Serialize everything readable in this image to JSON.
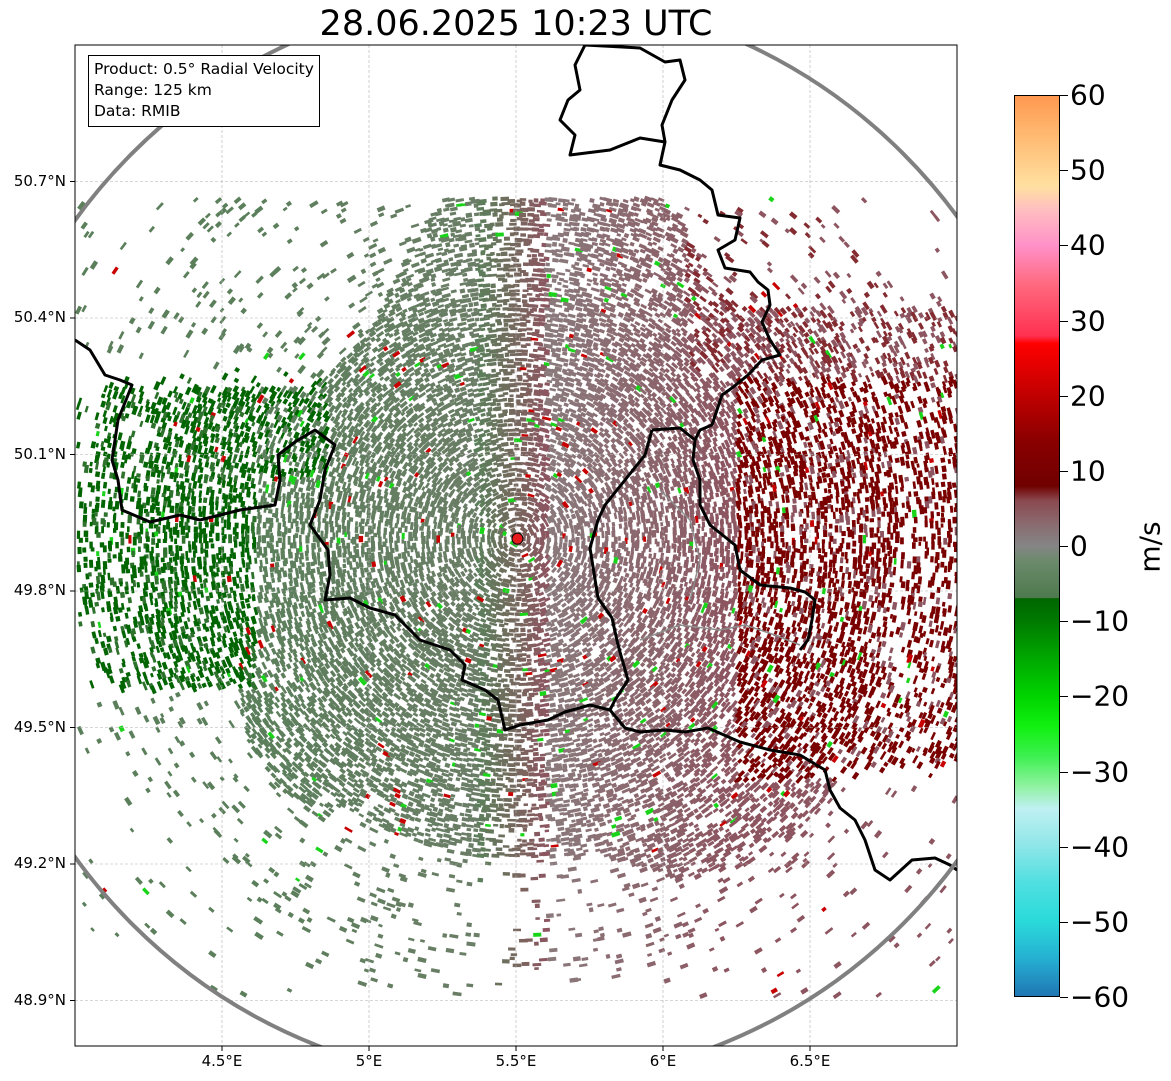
{
  "title": "28.06.2025 10:23 UTC",
  "info_box": {
    "product": "Product: 0.5° Radial Velocity",
    "range": "Range: 125 km",
    "data": "Data: RMIB"
  },
  "map": {
    "lon_range": [
      4.0,
      7.0
    ],
    "lat_range": [
      48.8,
      51.0
    ],
    "lat_ticks": [
      "50.7°N",
      "50.4°N",
      "50.1°N",
      "49.8°N",
      "49.5°N",
      "49.2°N",
      "48.9°N"
    ],
    "lat_tick_values": [
      50.7,
      50.4,
      50.1,
      49.8,
      49.5,
      49.2,
      48.9
    ],
    "lon_ticks": [
      "4.5°E",
      "5°E",
      "5.5°E",
      "6°E",
      "6.5°E"
    ],
    "lon_tick_values": [
      4.5,
      5.0,
      5.5,
      6.0,
      6.5
    ],
    "radar_site": {
      "lon": 5.505,
      "lat": 49.915,
      "color": "#e41a1c"
    },
    "range_ring_color": "#808080",
    "border_color": "#000000",
    "grid": true
  },
  "colorbar": {
    "unit": "m/s",
    "min": -60,
    "max": 60,
    "tick_labels": [
      "60",
      "50",
      "40",
      "30",
      "20",
      "10",
      "0",
      "−10",
      "−20",
      "−30",
      "−40",
      "−50",
      "−60"
    ],
    "tick_values": [
      60,
      50,
      40,
      30,
      20,
      10,
      0,
      -10,
      -20,
      -30,
      -40,
      -50,
      -60
    ],
    "stops": [
      {
        "v": -60,
        "c": "#1f77b4"
      },
      {
        "v": -55,
        "c": "#25b0d2"
      },
      {
        "v": -50,
        "c": "#2adada"
      },
      {
        "v": -45,
        "c": "#4fdfe0"
      },
      {
        "v": -40,
        "c": "#8ee6e8"
      },
      {
        "v": -35,
        "c": "#c0f0f2"
      },
      {
        "v": -32,
        "c": "#8ff2a0"
      },
      {
        "v": -28,
        "c": "#3cf050"
      },
      {
        "v": -24,
        "c": "#10f010"
      },
      {
        "v": -20,
        "c": "#00d400"
      },
      {
        "v": -15,
        "c": "#00a800"
      },
      {
        "v": -10,
        "c": "#007a00"
      },
      {
        "v": -7,
        "c": "#006600"
      },
      {
        "v": -6.9,
        "c": "#4e7a4e"
      },
      {
        "v": -2,
        "c": "#6b8a6b"
      },
      {
        "v": 0,
        "c": "#858585"
      },
      {
        "v": 3,
        "c": "#8a6a6f"
      },
      {
        "v": 6,
        "c": "#8a4a50"
      },
      {
        "v": 8,
        "c": "#700000"
      },
      {
        "v": 14,
        "c": "#8a0000"
      },
      {
        "v": 20,
        "c": "#c00000"
      },
      {
        "v": 27,
        "c": "#ff0000"
      },
      {
        "v": 28,
        "c": "#ff3050"
      },
      {
        "v": 35,
        "c": "#ff6a80"
      },
      {
        "v": 40,
        "c": "#ff90c8"
      },
      {
        "v": 45,
        "c": "#ffc0c0"
      },
      {
        "v": 48,
        "c": "#ffe0a0"
      },
      {
        "v": 55,
        "c": "#ffb870"
      },
      {
        "v": 60,
        "c": "#ff9850"
      }
    ]
  },
  "velocity_palette": {
    "inbound_strong": "#006400",
    "inbound_weak": "#5b7f5b",
    "neutral": "#8a7a7c",
    "outbound_weak": "#8c5560",
    "outbound_strong": "#7a0000",
    "speckle_green": "#19d419",
    "speckle_red": "#c80000"
  }
}
